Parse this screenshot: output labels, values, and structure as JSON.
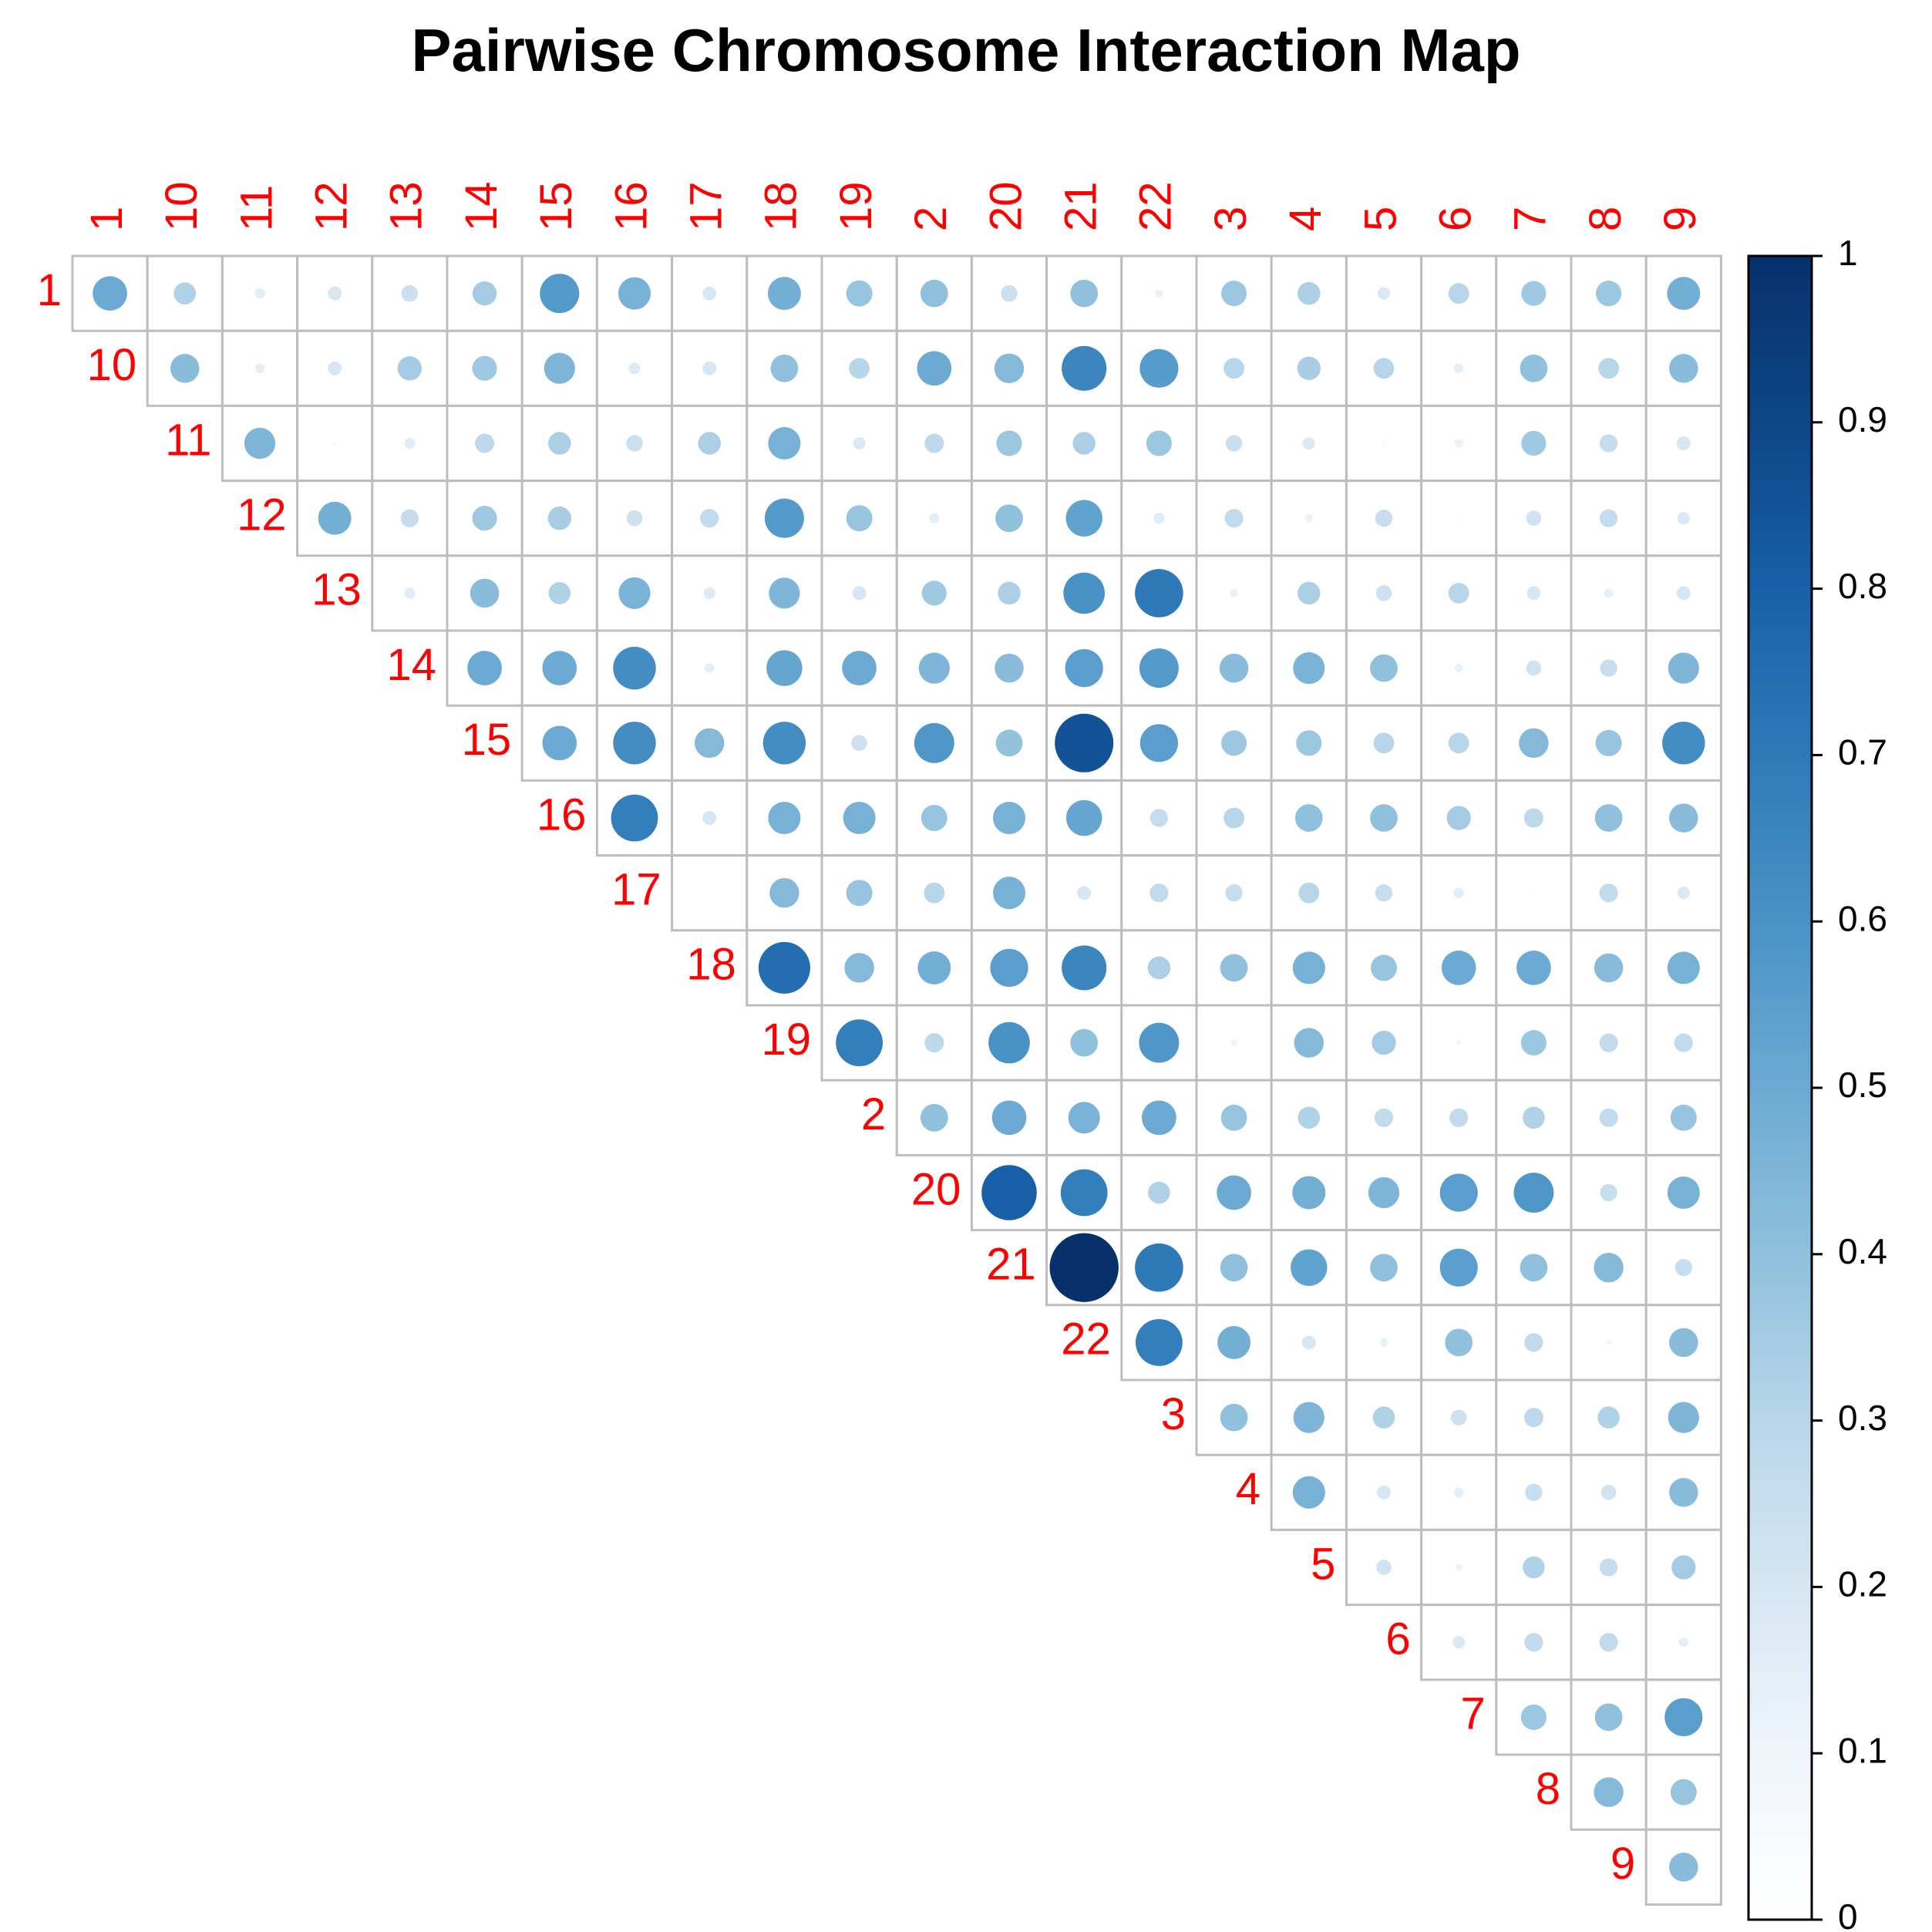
{
  "chart_data": {
    "type": "correlation-matrix",
    "title": "Pairwise Chromosome Interaction Map",
    "labels": [
      "1",
      "10",
      "11",
      "12",
      "13",
      "14",
      "15",
      "16",
      "17",
      "18",
      "19",
      "2",
      "20",
      "21",
      "22",
      "3",
      "4",
      "5",
      "6",
      "7",
      "8",
      "9"
    ],
    "label_color": "#ff0000",
    "upper_triangle": true,
    "matrix": [
      [
        0.5,
        0.32,
        0.15,
        0.2,
        0.24,
        0.35,
        0.57,
        0.47,
        0.2,
        0.48,
        0.38,
        0.4,
        0.24,
        0.4,
        0.12,
        0.37,
        0.33,
        0.18,
        0.3,
        0.36,
        0.37,
        0.48
      ],
      [
        null,
        0.42,
        0.14,
        0.2,
        0.35,
        0.36,
        0.45,
        0.17,
        0.2,
        0.4,
        0.3,
        0.5,
        0.43,
        0.65,
        0.56,
        0.3,
        0.34,
        0.3,
        0.14,
        0.4,
        0.3,
        0.42
      ],
      [
        null,
        null,
        0.45,
        0.06,
        0.16,
        0.28,
        0.33,
        0.24,
        0.33,
        0.47,
        0.18,
        0.28,
        0.37,
        0.33,
        0.37,
        0.24,
        0.18,
        0.05,
        0.12,
        0.36,
        0.26,
        0.2
      ],
      [
        null,
        null,
        null,
        0.48,
        0.26,
        0.36,
        0.34,
        0.23,
        0.27,
        0.57,
        0.38,
        0.15,
        0.4,
        0.53,
        0.16,
        0.27,
        0.12,
        0.25,
        0.03,
        0.22,
        0.26,
        0.18
      ],
      [
        null,
        null,
        null,
        null,
        0.16,
        0.42,
        0.32,
        0.46,
        0.17,
        0.45,
        0.2,
        0.36,
        0.33,
        0.6,
        0.7,
        0.12,
        0.33,
        0.23,
        0.3,
        0.2,
        0.13,
        0.2
      ],
      [
        null,
        null,
        null,
        null,
        null,
        0.5,
        0.5,
        0.62,
        0.14,
        0.52,
        0.5,
        0.45,
        0.42,
        0.55,
        0.57,
        0.42,
        0.46,
        0.4,
        0.12,
        0.22,
        0.25,
        0.45
      ],
      [
        null,
        null,
        null,
        null,
        null,
        null,
        0.5,
        0.62,
        0.43,
        0.62,
        0.23,
        0.58,
        0.39,
        0.85,
        0.55,
        0.37,
        0.37,
        0.3,
        0.3,
        0.43,
        0.38,
        0.62
      ],
      [
        null,
        null,
        null,
        null,
        null,
        null,
        null,
        0.68,
        0.2,
        0.47,
        0.47,
        0.38,
        0.47,
        0.52,
        0.26,
        0.3,
        0.4,
        0.4,
        0.35,
        0.28,
        0.4,
        0.42
      ],
      [
        null,
        null,
        null,
        null,
        null,
        null,
        null,
        null,
        null,
        0.43,
        0.38,
        0.3,
        0.47,
        0.2,
        0.27,
        0.25,
        0.3,
        0.25,
        0.15,
        0.03,
        0.27,
        0.18
      ],
      [
        null,
        null,
        null,
        null,
        null,
        null,
        null,
        null,
        null,
        0.75,
        0.43,
        0.48,
        0.55,
        0.65,
        0.33,
        0.4,
        0.47,
        0.38,
        0.5,
        0.5,
        0.42,
        0.47
      ],
      [
        null,
        null,
        null,
        null,
        null,
        null,
        null,
        null,
        null,
        null,
        0.68,
        0.28,
        0.6,
        0.4,
        0.58,
        0.1,
        0.43,
        0.35,
        0.08,
        0.37,
        0.27,
        0.27
      ],
      [
        null,
        null,
        null,
        null,
        null,
        null,
        null,
        null,
        null,
        null,
        null,
        0.4,
        0.5,
        0.46,
        0.5,
        0.38,
        0.32,
        0.27,
        0.27,
        0.32,
        0.27,
        0.38
      ],
      [
        null,
        null,
        null,
        null,
        null,
        null,
        null,
        null,
        null,
        null,
        null,
        null,
        0.8,
        0.68,
        0.32,
        0.5,
        0.48,
        0.45,
        0.55,
        0.58,
        0.25,
        0.47
      ],
      [
        null,
        null,
        null,
        null,
        null,
        null,
        null,
        null,
        null,
        null,
        null,
        null,
        null,
        1.0,
        0.7,
        0.4,
        0.53,
        0.4,
        0.55,
        0.4,
        0.43,
        0.25
      ],
      [
        null,
        null,
        null,
        null,
        null,
        null,
        null,
        null,
        null,
        null,
        null,
        null,
        null,
        null,
        0.68,
        0.48,
        0.2,
        0.12,
        0.4,
        0.27,
        0.08,
        0.42
      ],
      [
        null,
        null,
        null,
        null,
        null,
        null,
        null,
        null,
        null,
        null,
        null,
        null,
        null,
        null,
        null,
        0.4,
        0.45,
        0.32,
        0.23,
        0.28,
        0.32,
        0.45
      ],
      [
        null,
        null,
        null,
        null,
        null,
        null,
        null,
        null,
        null,
        null,
        null,
        null,
        null,
        null,
        null,
        null,
        0.47,
        0.2,
        0.14,
        0.25,
        0.22,
        0.42
      ],
      [
        null,
        null,
        null,
        null,
        null,
        null,
        null,
        null,
        null,
        null,
        null,
        null,
        null,
        null,
        null,
        null,
        null,
        0.22,
        0.11,
        0.32,
        0.26,
        0.35
      ],
      [
        null,
        null,
        null,
        null,
        null,
        null,
        null,
        null,
        null,
        null,
        null,
        null,
        null,
        null,
        null,
        null,
        null,
        null,
        0.18,
        0.27,
        0.27,
        0.14
      ],
      [
        null,
        null,
        null,
        null,
        null,
        null,
        null,
        null,
        null,
        null,
        null,
        null,
        null,
        null,
        null,
        null,
        null,
        null,
        null,
        0.37,
        0.4,
        0.55
      ],
      [
        null,
        null,
        null,
        null,
        null,
        null,
        null,
        null,
        null,
        null,
        null,
        null,
        null,
        null,
        null,
        null,
        null,
        null,
        null,
        null,
        0.43,
        0.38
      ],
      [
        null,
        null,
        null,
        null,
        null,
        null,
        null,
        null,
        null,
        null,
        null,
        null,
        null,
        null,
        null,
        null,
        null,
        null,
        null,
        null,
        null,
        0.42
      ]
    ],
    "colorbar": {
      "range": [
        0,
        1
      ],
      "ticks": [
        "0",
        "0.1",
        "0.2",
        "0.3",
        "0.4",
        "0.5",
        "0.6",
        "0.7",
        "0.8",
        "0.9",
        "1"
      ]
    },
    "colors": {
      "low": "#ffffff",
      "mid": "#8fc0dc",
      "high": "#08306b",
      "grid": "#bdbdbd"
    }
  }
}
